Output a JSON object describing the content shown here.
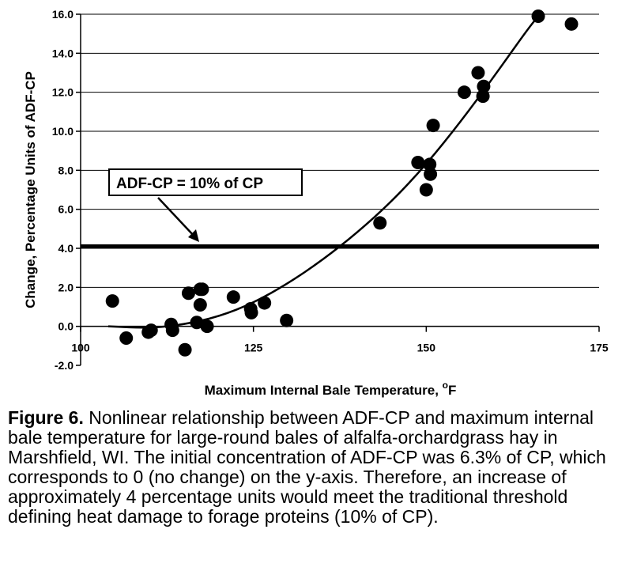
{
  "chart_data": {
    "type": "scatter",
    "xlabel": "Maximum Internal Bale Temperature, ",
    "xlabel_superscript": "o",
    "xlabel_unit": "F",
    "ylabel": "Change, Percentage Units of ADF-CP",
    "xlim": [
      100,
      175
    ],
    "ylim": [
      -2.0,
      16.0
    ],
    "x_ticks": [
      100,
      125,
      150,
      175
    ],
    "y_ticks": [
      -2.0,
      0.0,
      2.0,
      4.0,
      6.0,
      8.0,
      10.0,
      12.0,
      14.0,
      16.0
    ],
    "y_tick_labels": [
      "-2.0",
      "0.0",
      "2.0",
      "4.0",
      "6.0",
      "8.0",
      "10.0",
      "12.0",
      "14.0",
      "16.0"
    ],
    "grid": "horizontal",
    "points": [
      [
        104.6,
        1.3
      ],
      [
        106.6,
        -0.6
      ],
      [
        109.8,
        -0.3
      ],
      [
        110.2,
        -0.2
      ],
      [
        113.1,
        0.1
      ],
      [
        113.3,
        -0.2
      ],
      [
        115.1,
        -1.2
      ],
      [
        115.6,
        1.7
      ],
      [
        116.8,
        0.2
      ],
      [
        117.3,
        1.1
      ],
      [
        117.3,
        1.9
      ],
      [
        117.6,
        1.9
      ],
      [
        118.3,
        0.0
      ],
      [
        122.1,
        1.5
      ],
      [
        124.6,
        0.9
      ],
      [
        124.7,
        0.7
      ],
      [
        126.6,
        1.2
      ],
      [
        129.8,
        0.3
      ],
      [
        143.3,
        5.3
      ],
      [
        148.8,
        8.4
      ],
      [
        150.0,
        7.0
      ],
      [
        150.5,
        8.3
      ],
      [
        150.6,
        7.8
      ],
      [
        151.0,
        10.3
      ],
      [
        155.5,
        12.0
      ],
      [
        157.5,
        13.0
      ],
      [
        158.2,
        11.8
      ],
      [
        158.3,
        12.3
      ],
      [
        166.2,
        15.9
      ],
      [
        171.0,
        15.5
      ]
    ],
    "trend_curve": {
      "x": [
        104,
        110,
        115,
        120,
        125,
        130,
        135,
        140,
        145,
        150,
        155,
        160,
        165,
        166.5
      ],
      "y": [
        0.0,
        -0.1,
        0.1,
        0.5,
        1.2,
        2.2,
        3.4,
        4.8,
        6.4,
        8.3,
        10.5,
        12.9,
        15.4,
        16.0
      ]
    },
    "threshold": {
      "y": 4.1,
      "label": "ADF-CP = 10% of CP"
    },
    "colors": {
      "points": "#000000",
      "curve": "#000000",
      "grid": "#000000",
      "background": "#ffffff"
    }
  },
  "caption": {
    "label": "Figure 6.",
    "text": " Nonlinear relationship between ADF-CP and maximum internal bale temperature for large-round bales of alfalfa-orchardgrass hay in Marshfield, WI. The initial concentration of ADF-CP was 6.3% of CP, which corresponds to 0 (no change) on the y-axis. Therefore, an increase of approximately 4 percentage units would meet the traditional threshold defining heat damage to forage proteins (10% of CP)."
  }
}
